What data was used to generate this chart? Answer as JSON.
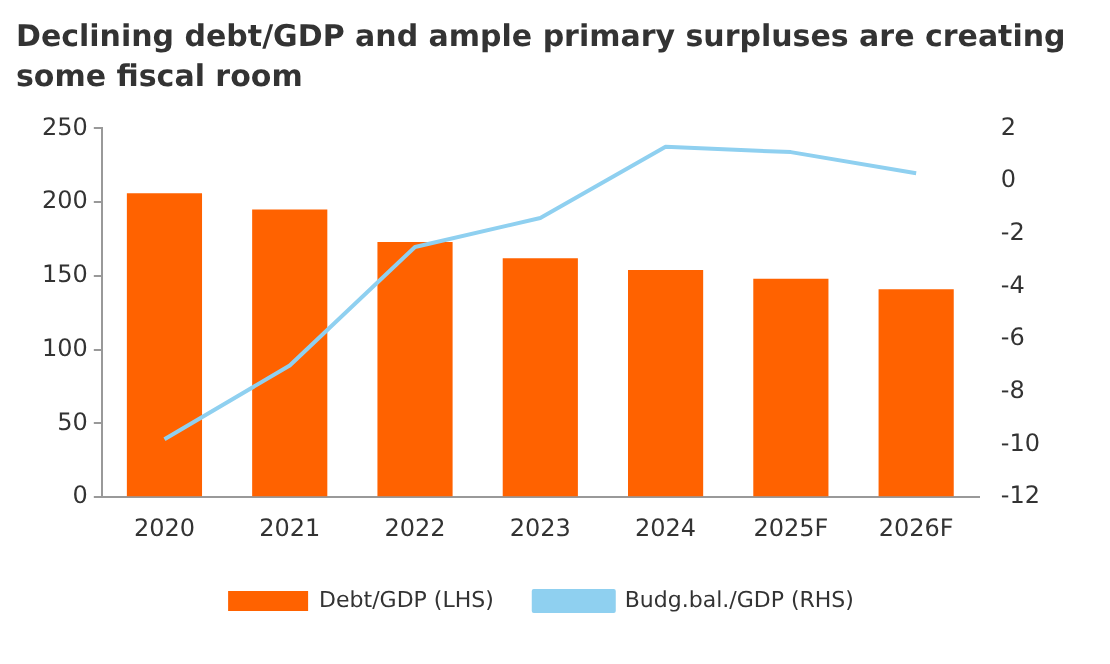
{
  "chart_data": {
    "type": "bar",
    "title": "Declining debt/GDP and ample primary surpluses are creating some fiscal room",
    "categories": [
      "2020",
      "2021",
      "2022",
      "2023",
      "2024",
      "2025F",
      "2026F"
    ],
    "series": [
      {
        "name": "Debt/GDP (LHS)",
        "color": "#ff6200",
        "values": [
          206,
          195,
          173,
          162,
          154,
          148,
          141
        ]
      },
      {
        "name": "Budg.bal./GDP (RHS)",
        "type": "line",
        "axis": "y2",
        "color": "#8fd0f0",
        "values": [
          -9.8,
          -7.0,
          -2.5,
          -1.4,
          1.3,
          1.1,
          0.3
        ]
      }
    ],
    "ylim": [
      0,
      250
    ],
    "yticks": [
      0,
      50,
      100,
      150,
      200,
      250
    ],
    "y2lim": [
      -12,
      2
    ],
    "y2ticks": [
      -12,
      -10,
      -8,
      -6,
      -4,
      -2,
      0,
      2
    ],
    "grid": false,
    "legend": "bottom",
    "marker": "none"
  }
}
